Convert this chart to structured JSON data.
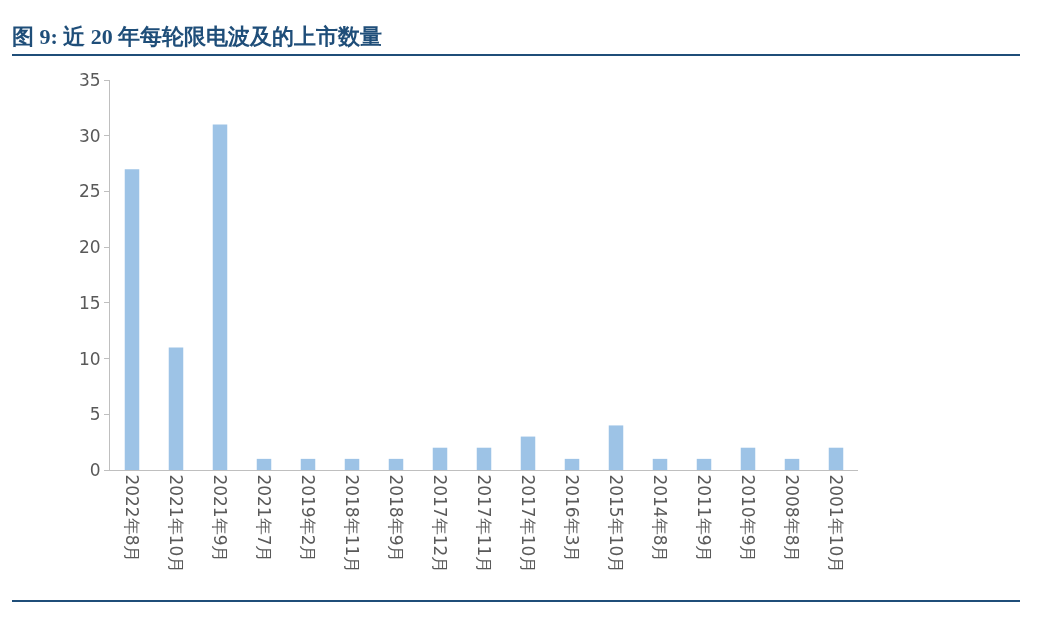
{
  "chart_data": {
    "type": "bar",
    "title": "图 9: 近 20 年每轮限电波及的上市数量",
    "categories": [
      "2022年8月",
      "2021年10月",
      "2021年9月",
      "2021年7月",
      "2019年2月",
      "2018年11月",
      "2018年9月",
      "2017年12月",
      "2017年11月",
      "2017年10月",
      "2016年3月",
      "2015年10月",
      "2014年8月",
      "2011年9月",
      "2010年9月",
      "2008年8月",
      "2001年10月"
    ],
    "values": [
      27,
      11,
      31,
      1,
      1,
      1,
      1,
      2,
      2,
      3,
      1,
      4,
      1,
      1,
      2,
      1,
      2
    ],
    "color": "#9dc3e6",
    "ylim": [
      0,
      35
    ],
    "yticks": [
      0,
      5,
      10,
      15,
      20,
      25,
      30,
      35
    ],
    "grid": false,
    "legend": false
  }
}
